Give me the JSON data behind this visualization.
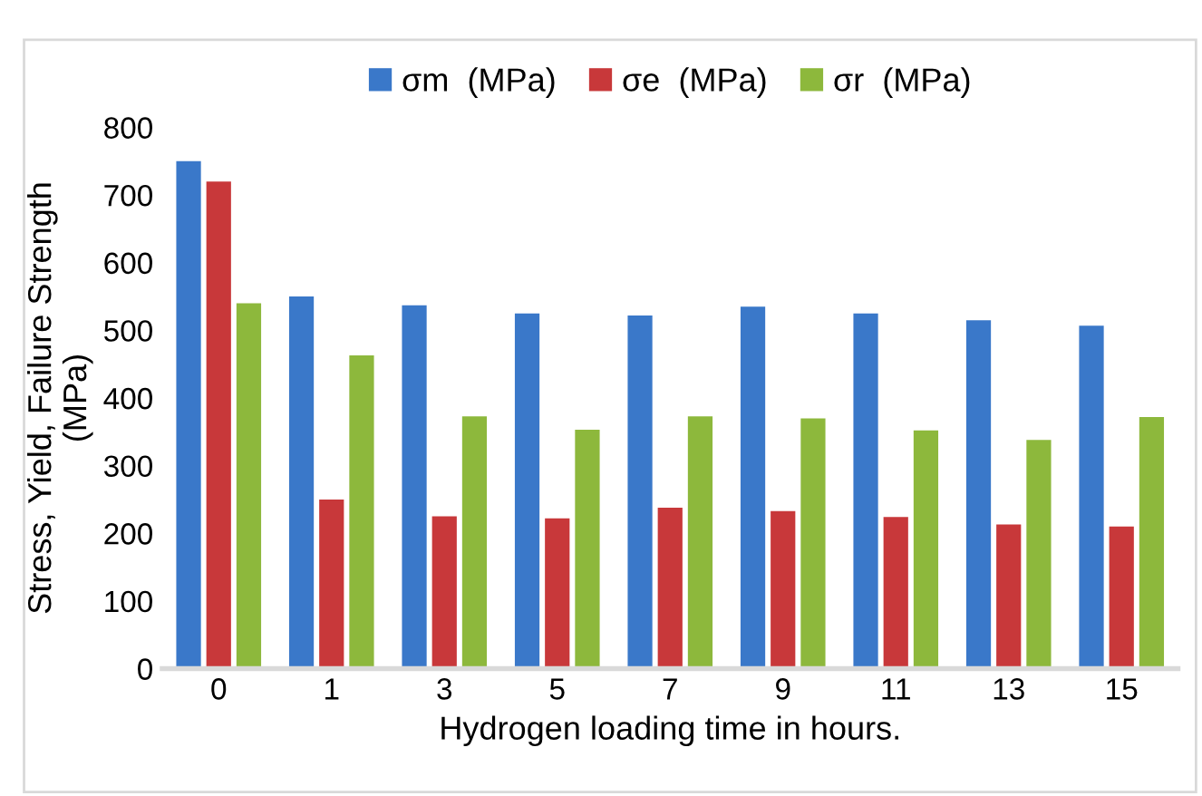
{
  "chart_data": {
    "type": "bar",
    "xlabel": "Hydrogen loading time in hours.",
    "ylabel": "Stress, Yield, Failure Strength\n(MPa)",
    "categories": [
      "0",
      "1",
      "3",
      "5",
      "7",
      "9",
      "11",
      "13",
      "15"
    ],
    "series": [
      {
        "name": "σm  (MPa)",
        "color": "#3a78c9",
        "values": [
          750,
          550,
          537,
          525,
          522,
          535,
          525,
          515,
          507
        ]
      },
      {
        "name": "σe  (MPa)",
        "color": "#c8383a",
        "values": [
          720,
          250,
          225,
          222,
          238,
          233,
          224,
          213,
          210
        ]
      },
      {
        "name": "σr  (MPa)",
        "color": "#8db83c",
        "values": [
          540,
          463,
          373,
          353,
          373,
          370,
          352,
          338,
          372
        ]
      }
    ],
    "ylim": [
      0,
      800
    ],
    "yticks": [
      0,
      100,
      200,
      300,
      400,
      500,
      600,
      700,
      800
    ],
    "grid": false,
    "legend": "top"
  }
}
